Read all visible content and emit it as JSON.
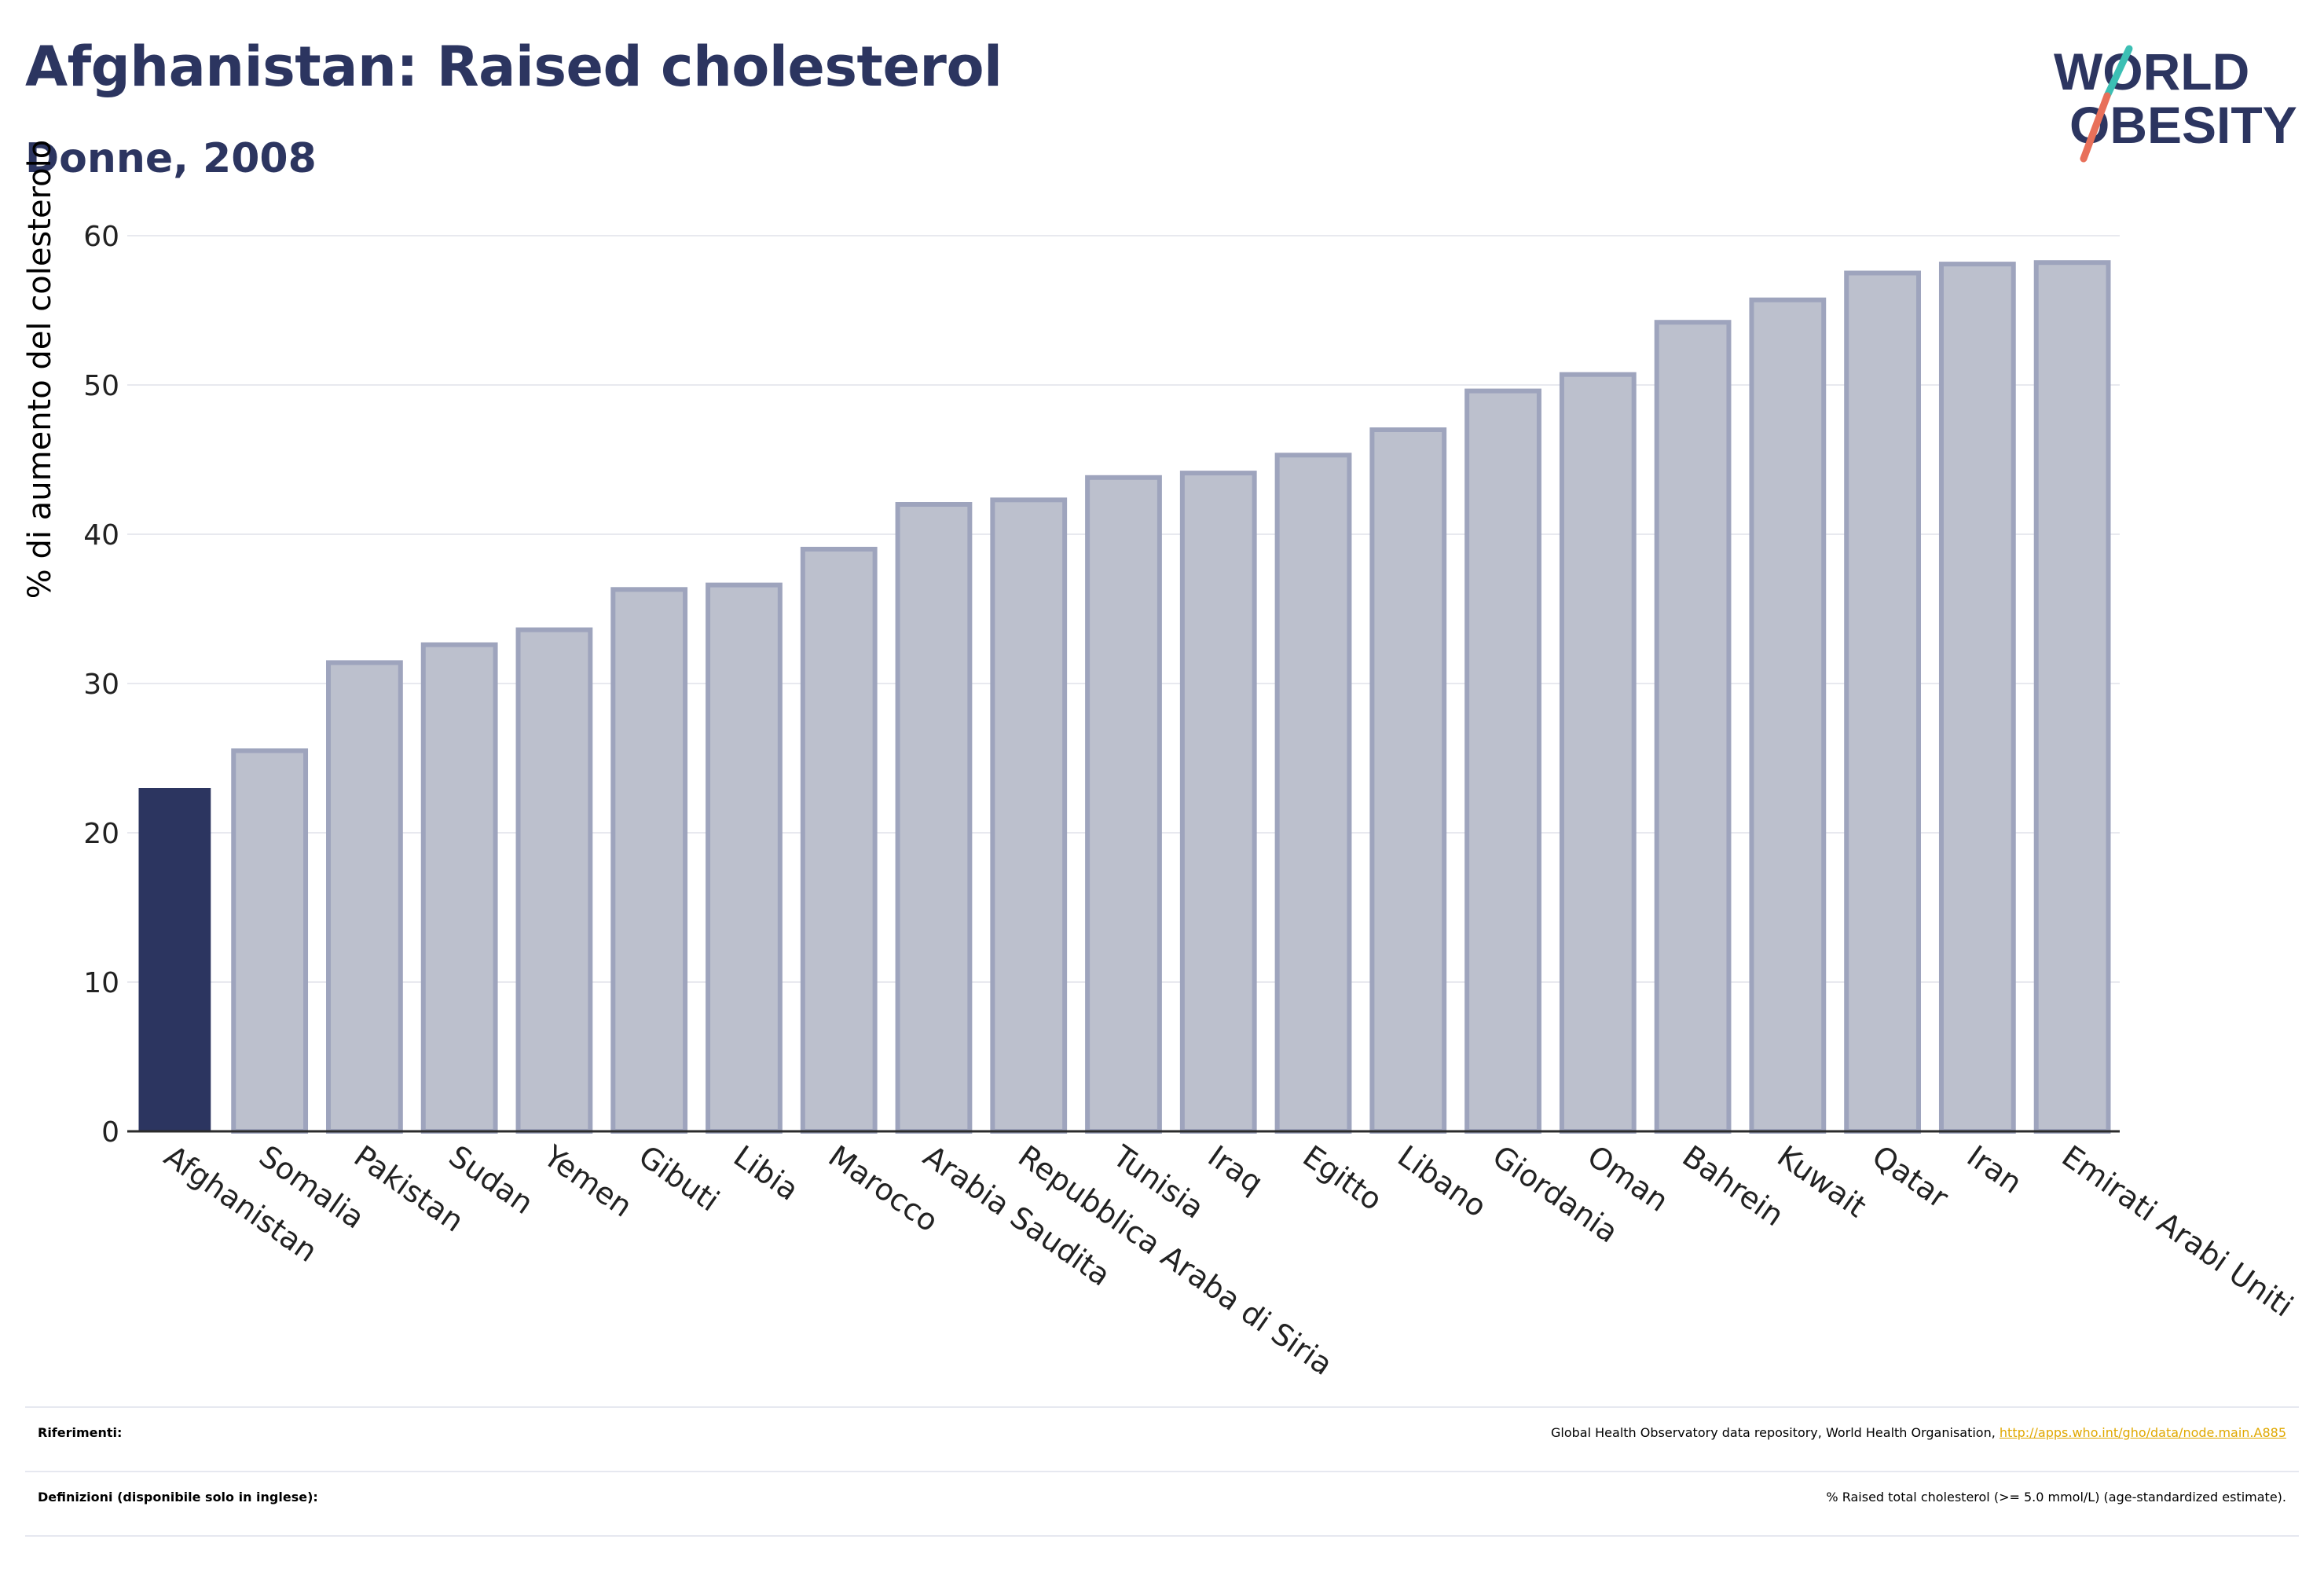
{
  "header": {
    "title": "Afghanistan: Raised cholesterol",
    "subtitle": "Donne, 2008"
  },
  "logo": {
    "line1": "WORLD",
    "line2": "OBESITY",
    "colors": {
      "text": "#2c3560",
      "slash_teal": "#3cbfb4",
      "slash_coral": "#e8705a"
    }
  },
  "chart_data": {
    "type": "bar",
    "ylabel": "% di aumento del colesterolo",
    "xlabel": "",
    "ylim": [
      0,
      60
    ],
    "yticks": [
      0,
      10,
      20,
      30,
      40,
      50,
      60
    ],
    "grid": true,
    "categories": [
      "Afghanistan",
      "Somalia",
      "Pakistan",
      "Sudan",
      "Yemen",
      "Gibuti",
      "Libia",
      "Marocco",
      "Arabia Saudita",
      "Repubblica Araba di Siria",
      "Tunisia",
      "Iraq",
      "Egitto",
      "Libano",
      "Giordania",
      "Oman",
      "Bahrein",
      "Kuwait",
      "Qatar",
      "Iran",
      "Emirati Arabi Uniti"
    ],
    "values": [
      23.0,
      25.5,
      31.4,
      32.6,
      33.6,
      36.3,
      36.6,
      39.0,
      42.0,
      42.3,
      43.8,
      44.1,
      45.3,
      47.0,
      49.6,
      50.7,
      54.2,
      55.7,
      57.5,
      58.1,
      58.2
    ],
    "highlight_index": 0,
    "colors": {
      "highlight": "#2c3560",
      "bar_fill": "#bcc0cd",
      "bar_stroke": "#9ea4bd",
      "grid": "#e8e9ef",
      "axis": "#2b2b2b"
    }
  },
  "footer": {
    "references_label": "Riferimenti:",
    "references_text": "Global Health Observatory data repository, World Health Organisation, ",
    "references_link": "http://apps.who.int/gho/data/node.main.A885",
    "definitions_label": "Definizioni (disponibile solo in inglese):",
    "definitions_text": "% Raised total cholesterol (>= 5.0 mmol/L) (age-standardized estimate)."
  }
}
